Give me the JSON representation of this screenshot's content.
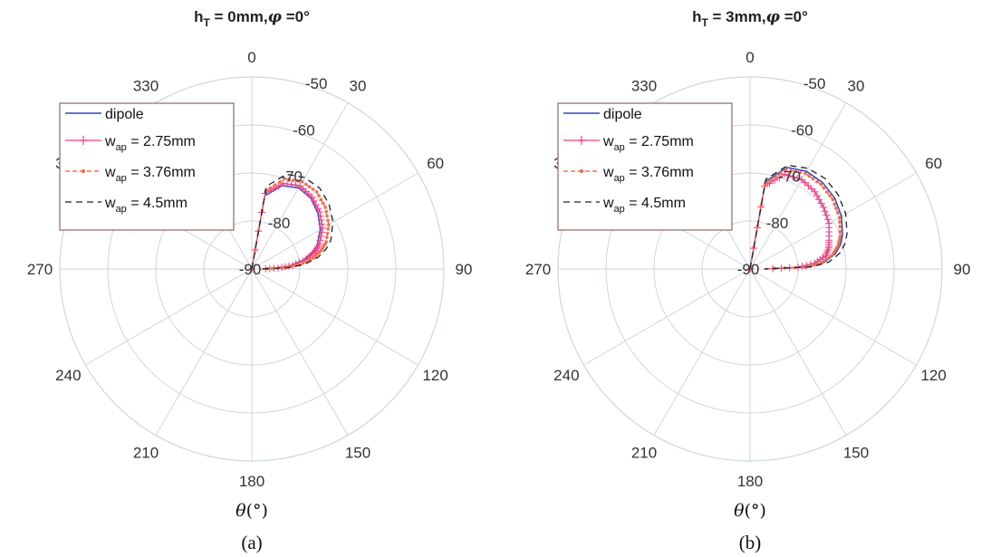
{
  "colors": {
    "dipole": "#3344bb",
    "w275": "#ee4488",
    "w376": "#f07050",
    "w45": "#222222",
    "grid": "#cdd6df",
    "legend_border": "#7a4a3a"
  },
  "chart_data": [
    {
      "type": "polar-line",
      "title_parts": {
        "h": "h",
        "sub": "T",
        "rest": " = 0mm,",
        "phi": "φ",
        "tail": " =0°"
      },
      "xlabel": {
        "theta": "θ",
        "unit": "(°)"
      },
      "caption": "(a)",
      "angle_labels": [
        "0",
        "30",
        "60",
        "90",
        "120",
        "150",
        "180",
        "210",
        "240",
        "270",
        "300",
        "330"
      ],
      "r_labels": [
        "-50",
        "-60",
        "-70",
        "-80",
        "-90"
      ],
      "rlim": [
        -90,
        -50
      ],
      "theta_direction": "clockwise",
      "theta_zero": "top",
      "grid": true,
      "legend": {
        "placement": "top-left",
        "entries": [
          {
            "series": 0,
            "label": "dipole"
          },
          {
            "series": 1,
            "prefix": "w",
            "sub": "ap",
            "suffix": " = 2.75mm"
          },
          {
            "series": 2,
            "prefix": "w",
            "sub": "ap",
            "suffix": " = 3.76mm"
          },
          {
            "series": 3,
            "prefix": "w",
            "sub": "ap",
            "suffix": " = 4.5mm"
          }
        ]
      },
      "series": [
        {
          "theta": [
            0,
            10,
            20,
            30,
            40,
            50,
            60,
            70,
            75,
            80,
            85,
            88,
            90
          ],
          "r": [
            -90,
            -74.5,
            -71.5,
            -70.5,
            -70.8,
            -72,
            -73.5,
            -75.5,
            -77,
            -79,
            -82,
            -85,
            -88
          ]
        },
        {
          "theta": [
            0,
            10,
            20,
            30,
            40,
            50,
            60,
            70,
            75,
            80,
            85,
            88,
            90
          ],
          "r": [
            -90,
            -74,
            -71,
            -70,
            -70.5,
            -71.5,
            -73,
            -75,
            -76.5,
            -78.5,
            -81.5,
            -84.5,
            -88
          ]
        },
        {
          "theta": [
            0,
            10,
            20,
            30,
            40,
            50,
            60,
            70,
            75,
            80,
            85,
            88,
            90
          ],
          "r": [
            -90,
            -73.5,
            -70,
            -69,
            -69,
            -70,
            -71.5,
            -73.5,
            -75,
            -77,
            -80,
            -83.5,
            -88
          ]
        },
        {
          "theta": [
            0,
            10,
            20,
            30,
            40,
            50,
            60,
            70,
            75,
            80,
            85,
            88,
            90
          ],
          "r": [
            -90,
            -72.5,
            -69,
            -68,
            -68,
            -69,
            -70.5,
            -72.5,
            -74,
            -76,
            -79,
            -82.5,
            -88
          ]
        }
      ]
    },
    {
      "type": "polar-line",
      "title_parts": {
        "h": "h",
        "sub": "T",
        "rest": " = 3mm,",
        "phi": "φ",
        "tail": " =0°"
      },
      "xlabel": {
        "theta": "θ",
        "unit": "(°)"
      },
      "caption": "(b)",
      "angle_labels": [
        "0",
        "30",
        "60",
        "90",
        "120",
        "150",
        "180",
        "210",
        "240",
        "270",
        "300",
        "330"
      ],
      "r_labels": [
        "-50",
        "-60",
        "-70",
        "-80",
        "-90"
      ],
      "rlim": [
        -90,
        -50
      ],
      "theta_direction": "clockwise",
      "theta_zero": "top",
      "grid": true,
      "legend": {
        "placement": "top-left",
        "entries": [
          {
            "series": 0,
            "label": "dipole"
          },
          {
            "series": 1,
            "prefix": "w",
            "sub": "ap",
            "suffix": " = 2.75mm"
          },
          {
            "series": 2,
            "prefix": "w",
            "sub": "ap",
            "suffix": " = 3.76mm"
          },
          {
            "series": 3,
            "prefix": "w",
            "sub": "ap",
            "suffix": " = 4.5mm"
          }
        ]
      },
      "series": [
        {
          "theta": [
            0,
            10,
            20,
            30,
            40,
            50,
            60,
            70,
            75,
            80,
            85,
            88,
            90
          ],
          "r": [
            -90,
            -71.5,
            -67.5,
            -66.5,
            -66.5,
            -67,
            -68,
            -69.5,
            -70.5,
            -72,
            -74.5,
            -78,
            -87
          ]
        },
        {
          "theta": [
            0,
            10,
            20,
            30,
            40,
            50,
            60,
            70,
            75,
            80,
            85,
            88,
            90
          ],
          "r": [
            -90,
            -72.5,
            -69,
            -68.5,
            -69,
            -70,
            -71,
            -72.5,
            -73,
            -74,
            -76.5,
            -80,
            -87
          ]
        },
        {
          "theta": [
            0,
            10,
            20,
            30,
            40,
            50,
            60,
            70,
            75,
            80,
            85,
            88,
            90
          ],
          "r": [
            -90,
            -72,
            -68,
            -67,
            -67,
            -67.5,
            -68.5,
            -70,
            -71,
            -72.5,
            -75,
            -78.5,
            -87
          ]
        },
        {
          "theta": [
            0,
            10,
            20,
            30,
            40,
            50,
            60,
            70,
            75,
            80,
            85,
            88,
            90
          ],
          "r": [
            -90,
            -71,
            -67,
            -65.8,
            -65.5,
            -66,
            -67,
            -68.5,
            -69.5,
            -71,
            -73.5,
            -77,
            -87
          ]
        }
      ]
    }
  ]
}
